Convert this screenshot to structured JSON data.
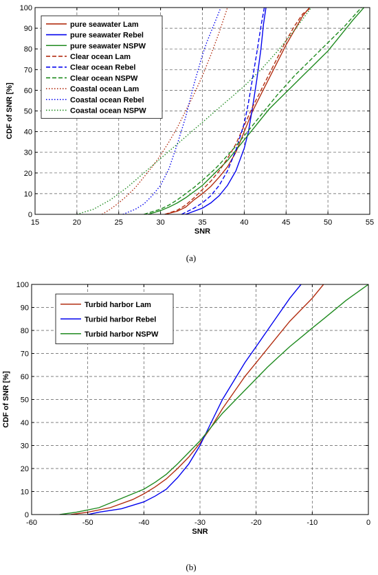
{
  "chart_data": [
    {
      "type": "line",
      "caption": "(a)",
      "xlabel": "SNR",
      "ylabel": "CDF of SNR [%]",
      "xlim": [
        15,
        55
      ],
      "ylim": [
        0,
        100
      ],
      "xticks": [
        15,
        20,
        25,
        30,
        35,
        40,
        45,
        50,
        55
      ],
      "yticks": [
        0,
        10,
        20,
        30,
        40,
        50,
        60,
        70,
        80,
        90,
        100
      ],
      "grid": true,
      "legend_position": "top-left",
      "series": [
        {
          "name": "pure seawater Lam",
          "color": "#b22d10",
          "style": "solid",
          "x": [
            30.5,
            32,
            33,
            34,
            35,
            36,
            37,
            38,
            39,
            40,
            41,
            42,
            43,
            44,
            45,
            46,
            47,
            47.8
          ],
          "y": [
            0,
            1.5,
            3.5,
            7,
            10,
            13.5,
            18,
            23,
            30,
            40,
            50,
            58,
            66,
            74,
            82,
            89,
            96,
            100
          ]
        },
        {
          "name": "pure seawater Rebel",
          "color": "#0000ee",
          "style": "solid",
          "x": [
            33,
            35,
            36,
            37,
            38,
            39,
            40,
            40.5,
            41,
            41.5,
            42,
            42.3,
            42.6
          ],
          "y": [
            0,
            3,
            5.5,
            9,
            14,
            21,
            32,
            40,
            52,
            65,
            80,
            92,
            100
          ]
        },
        {
          "name": "pure seawater NSPW",
          "color": "#1e8a1e",
          "style": "solid",
          "x": [
            28.5,
            30,
            31,
            32,
            33,
            34,
            35,
            36,
            37,
            38,
            39,
            40,
            41,
            42,
            43,
            44,
            45,
            46,
            47,
            48,
            49,
            50,
            51,
            52,
            53,
            54.3
          ],
          "y": [
            0,
            1.8,
            3.5,
            5.5,
            8,
            11,
            14,
            18,
            22,
            26,
            31,
            36,
            41,
            46,
            51,
            55,
            59,
            63,
            67,
            71,
            75,
            79,
            84,
            89,
            94,
            100
          ]
        },
        {
          "name": "Clear ocean Lam",
          "color": "#b22d10",
          "style": "dashed",
          "x": [
            30.5,
            32,
            33,
            34,
            35,
            36,
            37,
            38,
            39,
            40,
            41,
            42,
            43,
            44,
            45,
            46,
            47,
            48
          ],
          "y": [
            0,
            2,
            4.5,
            8,
            12,
            16,
            21,
            27,
            34,
            43,
            52,
            60,
            68,
            76,
            84,
            91,
            97,
            100
          ]
        },
        {
          "name": "Clear ocean Rebel",
          "color": "#0000ee",
          "style": "dashed",
          "x": [
            32.5,
            34,
            35,
            36,
            37,
            38,
            39,
            40,
            40.5,
            41,
            41.5,
            42,
            42.4
          ],
          "y": [
            0,
            3,
            5.5,
            9,
            14,
            21,
            31,
            44,
            54,
            66,
            78,
            91,
            100
          ]
        },
        {
          "name": "Clear ocean NSPW",
          "color": "#1e8a1e",
          "style": "dashed",
          "x": [
            28,
            30,
            31,
            32,
            33,
            34,
            35,
            36,
            37,
            38,
            39,
            40,
            41,
            42,
            43,
            44,
            45,
            46,
            47,
            48,
            49,
            50,
            51,
            52,
            53,
            54
          ],
          "y": [
            0,
            2.5,
            4.5,
            7,
            10,
            13,
            16.5,
            20,
            24,
            28.5,
            33,
            38,
            43,
            48,
            53,
            58,
            62.5,
            67,
            71,
            75,
            79,
            83,
            87,
            91,
            95.5,
            100
          ]
        },
        {
          "name": "Coastal ocean Lam",
          "color": "#b22d10",
          "style": "dotted",
          "x": [
            23,
            24,
            25,
            26,
            27,
            28,
            29,
            30,
            31,
            32,
            33,
            34,
            35,
            36,
            37,
            38
          ],
          "y": [
            0,
            2.5,
            5.5,
            9,
            13,
            18,
            23,
            28.5,
            35,
            42,
            50,
            58,
            67,
            77,
            88,
            100
          ]
        },
        {
          "name": "Coastal ocean Rebel",
          "color": "#0000ee",
          "style": "dotted",
          "x": [
            25.5,
            27,
            28,
            29,
            30,
            31,
            32,
            33,
            33.5,
            34,
            34.5,
            35,
            35.5,
            36,
            36.5,
            37.2
          ],
          "y": [
            0,
            2.5,
            5,
            9,
            14,
            22,
            34,
            47,
            55,
            63,
            70,
            77,
            83,
            88,
            93,
            100
          ]
        },
        {
          "name": "Coastal ocean NSPW",
          "color": "#1e8a1e",
          "style": "dotted",
          "x": [
            20,
            22,
            24,
            26,
            28,
            30,
            32,
            34,
            36,
            38,
            40,
            42,
            44,
            46,
            48
          ],
          "y": [
            0,
            2.5,
            7,
            13,
            20,
            27,
            34,
            41,
            48,
            55,
            62,
            70,
            79,
            89,
            100
          ]
        }
      ]
    },
    {
      "type": "line",
      "caption": "(b)",
      "xlabel": "SNR",
      "ylabel": "CDF of SNR [%]",
      "xlim": [
        -60,
        0
      ],
      "ylim": [
        0,
        100
      ],
      "xticks": [
        -60,
        -50,
        -40,
        -30,
        -20,
        -10,
        0
      ],
      "yticks": [
        0,
        10,
        20,
        30,
        40,
        50,
        60,
        70,
        80,
        90,
        100
      ],
      "grid": true,
      "legend_position": "top-left",
      "series": [
        {
          "name": "Turbid harbor Lam",
          "color": "#b22d10",
          "style": "solid",
          "x": [
            -53,
            -50,
            -46,
            -42,
            -40,
            -38,
            -36,
            -34,
            -32,
            -30,
            -28,
            -26,
            -24,
            -22,
            -20,
            -18,
            -16,
            -14,
            -12,
            -10,
            -8
          ],
          "y": [
            0,
            1,
            3,
            6.5,
            9,
            12,
            15.5,
            20,
            25,
            31,
            38,
            46,
            53,
            60,
            66,
            72,
            78,
            84,
            89,
            94,
            100
          ]
        },
        {
          "name": "Turbid harbor Rebel",
          "color": "#0000ee",
          "style": "solid",
          "x": [
            -50,
            -48,
            -44,
            -40,
            -38,
            -36,
            -34,
            -32,
            -30,
            -28,
            -26,
            -24,
            -22,
            -20,
            -18,
            -16,
            -14,
            -12
          ],
          "y": [
            0,
            1,
            2.5,
            5.5,
            8,
            11,
            16,
            22,
            30,
            40,
            50,
            58,
            66,
            73,
            80,
            87,
            94,
            100
          ]
        },
        {
          "name": "Turbid harbor NSPW",
          "color": "#1e8a1e",
          "style": "solid",
          "x": [
            -55,
            -52,
            -48,
            -44,
            -40,
            -38,
            -36,
            -34,
            -32,
            -30,
            -28,
            -26,
            -24,
            -22,
            -20,
            -18,
            -16,
            -14,
            -12,
            -10,
            -8,
            -6,
            -4,
            -2,
            0
          ],
          "y": [
            0,
            1,
            3,
            7,
            11,
            14,
            17.5,
            22,
            27,
            32,
            38,
            44,
            49,
            54,
            59,
            64,
            68.5,
            73,
            77,
            81,
            85,
            89,
            93,
            96.5,
            100
          ]
        }
      ]
    }
  ]
}
